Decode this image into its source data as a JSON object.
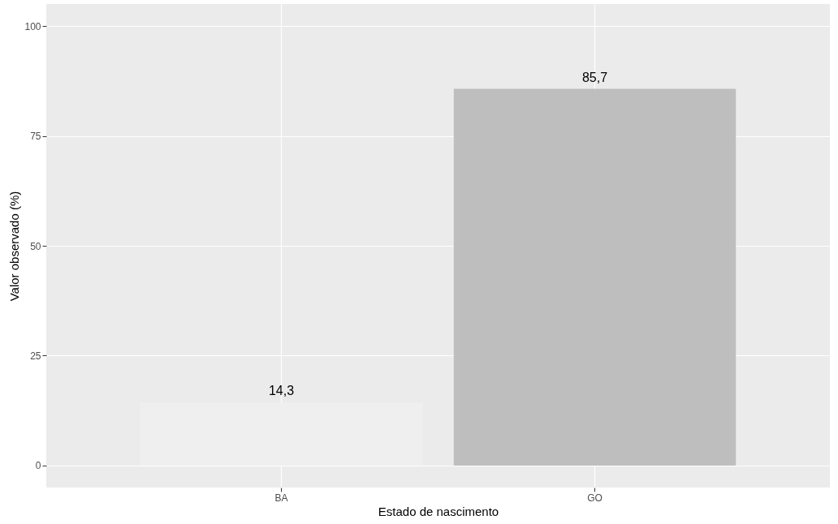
{
  "chart_data": {
    "type": "bar",
    "xlabel": "Estado de nascimento",
    "ylabel": "Valor observado (%)",
    "categories": [
      "BA",
      "GO"
    ],
    "values": [
      14.3,
      85.7
    ],
    "colors": [
      "#efefef",
      "#bebebe"
    ],
    "value_labels": [
      "14,3",
      "85,7"
    ],
    "ylim": [
      -5,
      105
    ],
    "yticks": [
      0,
      25,
      50,
      75,
      100
    ],
    "grid": true
  }
}
